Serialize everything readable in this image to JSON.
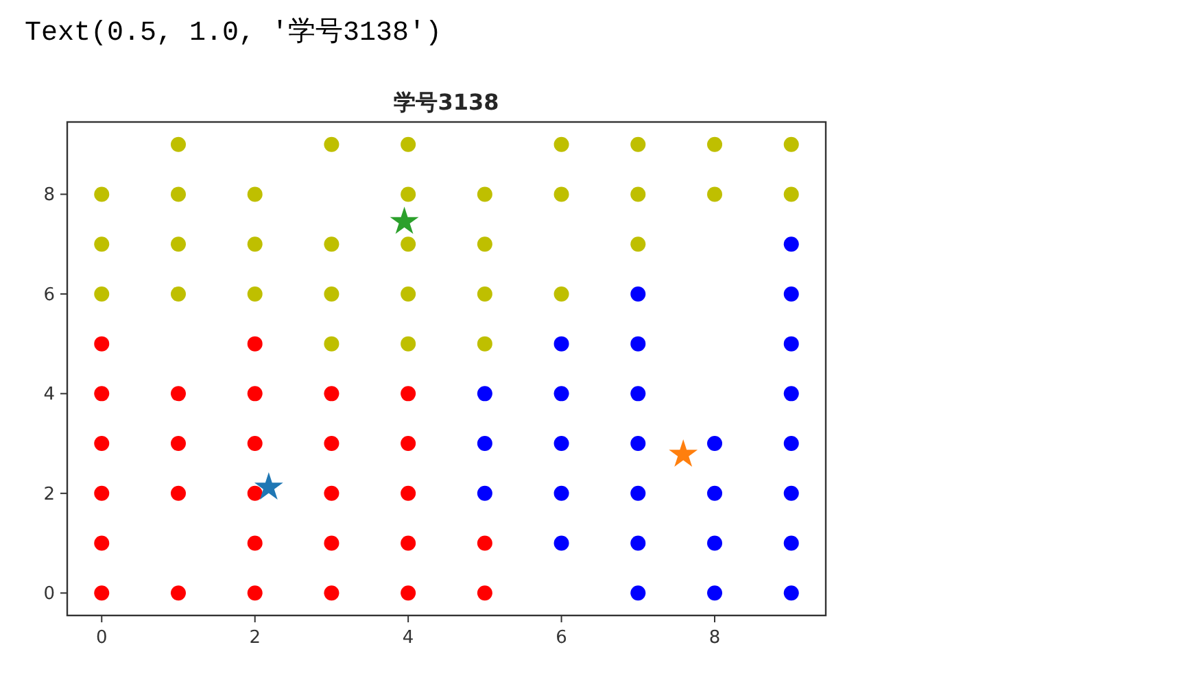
{
  "chart_data": {
    "type": "scatter",
    "title": "学号3138",
    "annotations": [
      "Text(0.5, 1.0, '学号3138')"
    ],
    "xlim": [
      -0.45,
      9.45
    ],
    "ylim": [
      -0.45,
      9.45
    ],
    "xticks": [
      0,
      2,
      4,
      6,
      8
    ],
    "yticks": [
      0,
      2,
      4,
      6,
      8
    ],
    "series": [
      {
        "color": "#bfbf00",
        "marker": "circle",
        "x": [
          1,
          3,
          4,
          6,
          7,
          8,
          9,
          0,
          1,
          2,
          4,
          5,
          6,
          7,
          8,
          9,
          0,
          1,
          2,
          3,
          4,
          5,
          7,
          0,
          1,
          2,
          3,
          4,
          5,
          6,
          3,
          4,
          5
        ],
        "values": [
          9,
          9,
          9,
          9,
          9,
          9,
          9,
          8,
          8,
          8,
          8,
          8,
          8,
          8,
          8,
          8,
          7,
          7,
          7,
          7,
          7,
          7,
          7,
          6,
          6,
          6,
          6,
          6,
          6,
          6,
          5,
          5,
          5
        ]
      },
      {
        "color": "#ff0000",
        "marker": "circle",
        "x": [
          0,
          2,
          0,
          1,
          2,
          3,
          4,
          0,
          1,
          2,
          3,
          4,
          0,
          1,
          2,
          3,
          4,
          0,
          2,
          3,
          4,
          5,
          0,
          1,
          2,
          3,
          4,
          5
        ],
        "values": [
          5,
          5,
          4,
          4,
          4,
          4,
          4,
          3,
          3,
          3,
          3,
          3,
          2,
          2,
          2,
          2,
          2,
          1,
          1,
          1,
          1,
          1,
          0,
          0,
          0,
          0,
          0,
          0
        ]
      },
      {
        "color": "#0000ff",
        "marker": "circle",
        "x": [
          9,
          7,
          9,
          6,
          7,
          9,
          5,
          6,
          7,
          9,
          5,
          6,
          7,
          8,
          9,
          5,
          6,
          7,
          8,
          9,
          6,
          7,
          8,
          9,
          7,
          8,
          9
        ],
        "values": [
          7,
          6,
          6,
          5,
          5,
          5,
          4,
          4,
          4,
          4,
          3,
          3,
          3,
          3,
          3,
          2,
          2,
          2,
          2,
          2,
          1,
          1,
          1,
          1,
          0,
          0,
          0
        ]
      },
      {
        "colors": [
          "#1f77b4",
          "#ff7f0e",
          "#2ca02c"
        ],
        "marker": "star",
        "x": [
          2.18,
          7.59,
          3.95
        ],
        "values": [
          2.12,
          2.78,
          7.45
        ]
      }
    ]
  }
}
